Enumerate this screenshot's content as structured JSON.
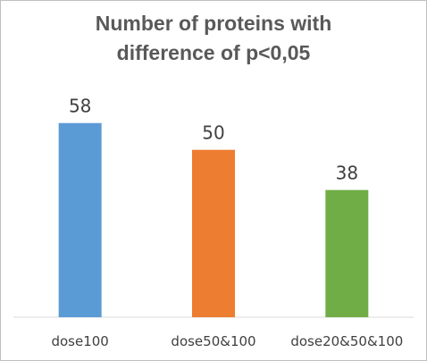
{
  "chart_data": {
    "type": "bar",
    "title_lines": [
      "Number of proteins with",
      "difference of p<0,05"
    ],
    "categories": [
      "dose100",
      "dose50&100",
      "dose20&50&100"
    ],
    "values": [
      58,
      50,
      38
    ],
    "colors": [
      "#5b9bd5",
      "#ed7d31",
      "#70ad47"
    ],
    "ylim": [
      0,
      75
    ],
    "grid": false,
    "legend": "none",
    "xlabel": "",
    "ylabel": ""
  }
}
